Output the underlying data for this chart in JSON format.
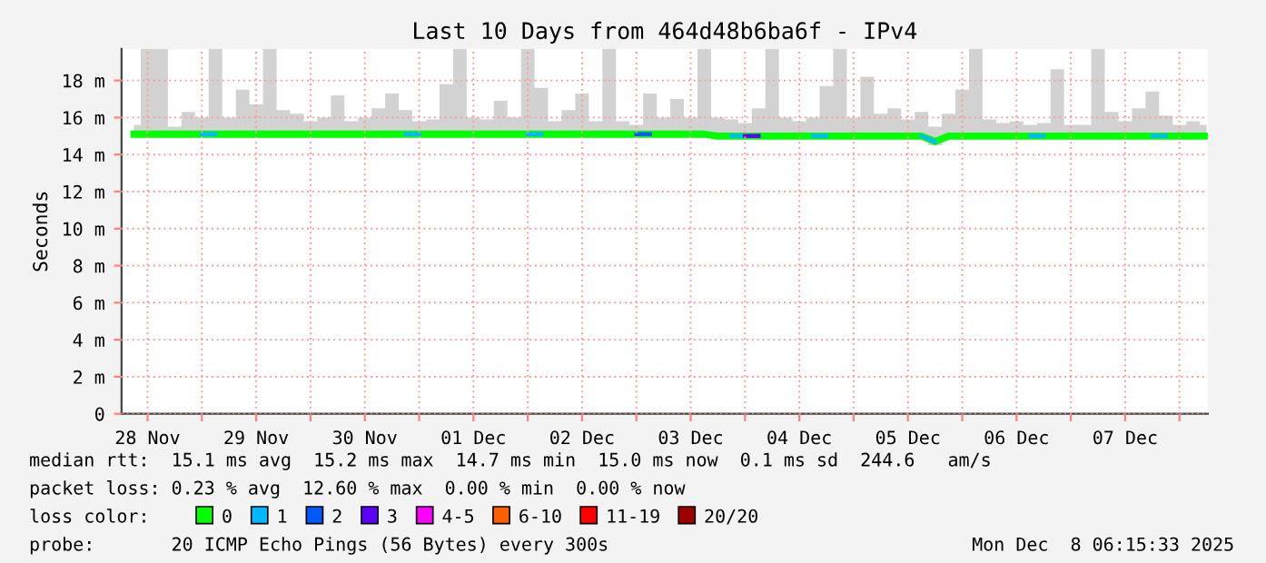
{
  "chart_data": {
    "type": "line",
    "title": "Last 10 Days from 464d48b6ba6f - IPv4",
    "ylabel": "Seconds",
    "legend_title": "loss color:",
    "legend": "bottom",
    "grid": true,
    "x": [
      "2025-11-28T09:00",
      "2025-11-28T12:00",
      "2025-11-28T15:00",
      "2025-11-28T18:00",
      "2025-11-28T21:00",
      "2025-11-29T00:00",
      "2025-11-29T03:00",
      "2025-11-29T06:00",
      "2025-11-29T09:00",
      "2025-11-29T12:00",
      "2025-11-29T15:00",
      "2025-11-29T18:00",
      "2025-11-29T21:00",
      "2025-11-30T00:00",
      "2025-11-30T03:00",
      "2025-11-30T06:00",
      "2025-11-30T09:00",
      "2025-11-30T12:00",
      "2025-11-30T15:00",
      "2025-11-30T18:00",
      "2025-11-30T21:00",
      "2025-12-01T00:00",
      "2025-12-01T03:00",
      "2025-12-01T06:00",
      "2025-12-01T09:00",
      "2025-12-01T12:00",
      "2025-12-01T15:00",
      "2025-12-01T18:00",
      "2025-12-01T21:00",
      "2025-12-02T00:00",
      "2025-12-02T03:00",
      "2025-12-02T06:00",
      "2025-12-02T09:00",
      "2025-12-02T12:00",
      "2025-12-02T15:00",
      "2025-12-02T18:00",
      "2025-12-02T21:00",
      "2025-12-03T00:00",
      "2025-12-03T03:00",
      "2025-12-03T06:00",
      "2025-12-03T09:00",
      "2025-12-03T12:00",
      "2025-12-03T15:00",
      "2025-12-03T18:00",
      "2025-12-03T21:00",
      "2025-12-04T00:00",
      "2025-12-04T03:00",
      "2025-12-04T06:00",
      "2025-12-04T09:00",
      "2025-12-04T12:00",
      "2025-12-04T15:00",
      "2025-12-04T18:00",
      "2025-12-04T21:00",
      "2025-12-05T00:00",
      "2025-12-05T03:00",
      "2025-12-05T06:00",
      "2025-12-05T09:00",
      "2025-12-05T12:00",
      "2025-12-05T15:00",
      "2025-12-05T18:00",
      "2025-12-05T21:00",
      "2025-12-06T00:00",
      "2025-12-06T03:00",
      "2025-12-06T06:00",
      "2025-12-06T09:00",
      "2025-12-06T12:00",
      "2025-12-06T15:00",
      "2025-12-06T18:00",
      "2025-12-06T21:00",
      "2025-12-07T00:00",
      "2025-12-07T03:00",
      "2025-12-07T06:00",
      "2025-12-07T09:00",
      "2025-12-07T12:00",
      "2025-12-07T15:00",
      "2025-12-07T18:00",
      "2025-12-07T21:00",
      "2025-12-08T00:00",
      "2025-12-08T03:00",
      "2025-12-08T06:00"
    ],
    "series": [
      {
        "color": "#00ff00",
        "values": [
          15.1,
          15.1,
          15.1,
          15.1,
          15.1,
          15.1,
          15.1,
          15.1,
          15.1,
          15.1,
          15.1,
          15.1,
          15.1,
          15.1,
          15.1,
          15.1,
          15.1,
          15.1,
          15.1,
          15.1,
          15.1,
          15.1,
          15.1,
          15.1,
          15.1,
          15.1,
          15.1,
          15.1,
          15.1,
          15.1,
          15.1,
          15.1,
          15.1,
          15.1,
          15.1,
          15.1,
          15.1,
          15.1,
          15.1,
          15.1,
          15.1,
          15.1,
          15.1,
          15.0,
          15.0,
          15.0,
          15.0,
          15.0,
          15.0,
          15.0,
          15.0,
          15.0,
          15.0,
          15.0,
          15.0,
          15.0,
          15.0,
          15.0,
          15.0,
          14.7,
          15.0,
          15.0,
          15.0,
          15.0,
          15.0,
          15.0,
          15.0,
          15.0,
          15.0,
          15.0,
          15.0,
          15.0,
          15.0,
          15.0,
          15.0,
          15.0,
          15.0,
          15.0,
          15.0,
          15.0
        ],
        "lower": [
          14.9,
          14.9,
          14.9,
          14.9,
          14.9,
          14.9,
          14.9,
          14.9,
          14.9,
          14.9,
          14.9,
          14.9,
          14.9,
          14.9,
          14.9,
          14.9,
          14.9,
          14.9,
          14.9,
          14.9,
          14.9,
          14.9,
          14.9,
          14.9,
          14.9,
          14.9,
          14.9,
          14.9,
          14.9,
          14.9,
          14.9,
          14.9,
          14.9,
          14.9,
          14.9,
          14.9,
          14.9,
          14.9,
          14.9,
          14.9,
          14.9,
          14.9,
          14.9,
          14.8,
          14.8,
          14.8,
          14.8,
          14.8,
          14.8,
          14.8,
          14.8,
          14.8,
          14.8,
          14.8,
          14.8,
          14.8,
          14.8,
          14.8,
          14.8,
          14.5,
          14.8,
          14.8,
          14.8,
          14.8,
          14.8,
          14.8,
          14.8,
          14.8,
          14.8,
          14.8,
          14.8,
          14.8,
          14.8,
          14.8,
          14.8,
          14.8,
          14.8,
          14.8,
          14.8,
          14.8
        ],
        "upper": [
          15.6,
          19.7,
          19.7,
          15.5,
          16.3,
          16.0,
          19.7,
          16.0,
          17.5,
          16.7,
          19.7,
          16.4,
          16.2,
          15.8,
          16.0,
          17.2,
          15.8,
          16.0,
          16.5,
          17.3,
          16.4,
          15.8,
          15.9,
          17.8,
          19.7,
          16.0,
          15.9,
          16.9,
          16.0,
          19.7,
          17.6,
          15.8,
          16.4,
          17.3,
          15.8,
          19.7,
          15.8,
          15.6,
          17.3,
          16.0,
          17.0,
          16.0,
          19.7,
          16.0,
          15.9,
          15.7,
          16.5,
          19.7,
          16.0,
          15.8,
          16.0,
          17.7,
          19.7,
          16.0,
          18.2,
          16.2,
          16.5,
          15.9,
          16.3,
          15.5,
          16.2,
          17.5,
          19.7,
          15.9,
          15.7,
          15.8,
          15.6,
          15.7,
          18.6,
          15.6,
          15.6,
          19.7,
          16.3,
          15.8,
          16.5,
          17.4,
          16.1,
          15.6,
          15.8,
          15.6
        ]
      },
      {
        "name": "0",
        "color": "#00ff00",
        "values": [
          null,
          null,
          null,
          null,
          null,
          null,
          null,
          null,
          null,
          null,
          null,
          null,
          null,
          null,
          null,
          null,
          null,
          null,
          null,
          null,
          null,
          null,
          null,
          null,
          null,
          null,
          null,
          null,
          null,
          null,
          null,
          null,
          null,
          null,
          null,
          null,
          null,
          null,
          null,
          null,
          null,
          null,
          null,
          null,
          null,
          null,
          null,
          null,
          null,
          null,
          null,
          null,
          null,
          null,
          null,
          null,
          null,
          null,
          null,
          null,
          null,
          null,
          null,
          null,
          null,
          null,
          null,
          null,
          null,
          null,
          null,
          null,
          null,
          null,
          null,
          null,
          null,
          null,
          null,
          null
        ]
      },
      {
        "name": "1",
        "color": "#00b8ff",
        "values": [
          null,
          null,
          null,
          null,
          null,
          15.1,
          15.1,
          null,
          null,
          null,
          null,
          null,
          null,
          null,
          null,
          null,
          null,
          null,
          null,
          null,
          15.1,
          15.1,
          null,
          null,
          null,
          null,
          null,
          null,
          null,
          15.1,
          15.1,
          null,
          null,
          null,
          null,
          null,
          null,
          null,
          null,
          null,
          null,
          null,
          null,
          null,
          15.0,
          15.0,
          null,
          null,
          null,
          null,
          15.0,
          15.0,
          null,
          null,
          null,
          null,
          null,
          null,
          15.0,
          14.7,
          null,
          null,
          null,
          null,
          null,
          null,
          15.0,
          15.0,
          null,
          null,
          null,
          null,
          null,
          null,
          null,
          15.0,
          15.0,
          null,
          null,
          null
        ]
      },
      {
        "name": "2",
        "color": "#0059ff",
        "values": [
          null,
          null,
          null,
          null,
          null,
          null,
          null,
          null,
          null,
          null,
          null,
          null,
          null,
          null,
          null,
          null,
          null,
          null,
          null,
          null,
          null,
          null,
          null,
          null,
          null,
          null,
          null,
          null,
          null,
          null,
          null,
          null,
          null,
          null,
          null,
          null,
          null,
          15.1,
          15.1,
          null,
          null,
          null,
          null,
          null,
          null,
          null,
          null,
          null,
          null,
          null,
          null,
          null,
          null,
          null,
          null,
          null,
          null,
          null,
          null,
          null,
          null,
          null,
          null,
          null,
          null,
          null,
          null,
          null,
          null,
          null,
          null,
          null,
          null,
          null,
          null,
          null,
          null,
          null,
          null,
          null
        ]
      },
      {
        "name": "3",
        "color": "#5e00ff",
        "values": [
          null,
          null,
          null,
          null,
          null,
          null,
          null,
          null,
          null,
          null,
          null,
          null,
          null,
          null,
          null,
          null,
          null,
          null,
          null,
          null,
          null,
          null,
          null,
          null,
          null,
          null,
          null,
          null,
          null,
          null,
          null,
          null,
          null,
          null,
          null,
          null,
          null,
          null,
          null,
          null,
          null,
          null,
          null,
          null,
          null,
          15.0,
          15.0,
          null,
          null,
          null,
          null,
          null,
          null,
          null,
          null,
          null,
          null,
          null,
          null,
          null,
          null,
          null,
          null,
          null,
          null,
          null,
          null,
          null,
          null,
          null,
          null,
          null,
          null,
          null,
          null,
          null,
          null,
          null,
          null,
          null
        ]
      },
      {
        "name": "4-5",
        "color": "#ff00ff",
        "values": [
          null,
          null,
          null,
          null,
          null,
          null,
          null,
          null,
          null,
          null,
          null,
          null,
          null,
          null,
          null,
          null,
          null,
          null,
          null,
          null,
          null,
          null,
          null,
          null,
          null,
          null,
          null,
          null,
          null,
          null,
          null,
          null,
          null,
          null,
          null,
          null,
          null,
          null,
          null,
          null,
          null,
          null,
          null,
          null,
          null,
          null,
          null,
          null,
          null,
          null,
          null,
          null,
          null,
          null,
          null,
          null,
          null,
          null,
          null,
          null,
          null,
          null,
          null,
          null,
          null,
          null,
          null,
          null,
          null,
          null,
          null,
          null,
          null,
          null,
          null,
          null,
          null,
          null,
          null,
          null
        ]
      },
      {
        "name": "6-10",
        "color": "#ff5e00",
        "values": [
          null,
          null,
          null,
          null,
          null,
          null,
          null,
          null,
          null,
          null,
          null,
          null,
          null,
          null,
          null,
          null,
          null,
          null,
          null,
          null,
          null,
          null,
          null,
          null,
          null,
          null,
          null,
          null,
          null,
          null,
          null,
          null,
          null,
          null,
          null,
          null,
          null,
          null,
          null,
          null,
          null,
          null,
          null,
          null,
          null,
          null,
          null,
          null,
          null,
          null,
          null,
          null,
          null,
          null,
          null,
          null,
          null,
          null,
          null,
          null,
          null,
          null,
          null,
          null,
          null,
          null,
          null,
          null,
          null,
          null,
          null,
          null,
          null,
          null,
          null,
          null,
          null,
          null,
          null,
          null
        ]
      },
      {
        "name": "11-19",
        "color": "#ff0000",
        "values": [
          null,
          null,
          null,
          null,
          null,
          null,
          null,
          null,
          null,
          null,
          null,
          null,
          null,
          null,
          null,
          null,
          null,
          null,
          null,
          null,
          null,
          null,
          null,
          null,
          null,
          null,
          null,
          null,
          null,
          null,
          null,
          null,
          null,
          null,
          null,
          null,
          null,
          null,
          null,
          null,
          null,
          null,
          null,
          null,
          null,
          null,
          null,
          null,
          null,
          null,
          null,
          null,
          null,
          null,
          null,
          null,
          null,
          null,
          null,
          null,
          null,
          null,
          null,
          null,
          null,
          null,
          null,
          null,
          null,
          null,
          null,
          null,
          null,
          null,
          null,
          null,
          null,
          null,
          null,
          null
        ]
      },
      {
        "name": "20/20",
        "color": "#a10000",
        "values": [
          null,
          null,
          null,
          null,
          null,
          null,
          null,
          null,
          null,
          null,
          null,
          null,
          null,
          null,
          null,
          null,
          null,
          null,
          null,
          null,
          null,
          null,
          null,
          null,
          null,
          null,
          null,
          null,
          null,
          null,
          null,
          null,
          null,
          null,
          null,
          null,
          null,
          null,
          null,
          null,
          null,
          null,
          null,
          null,
          null,
          null,
          null,
          null,
          null,
          null,
          null,
          null,
          null,
          null,
          null,
          null,
          null,
          null,
          null,
          null,
          null,
          null,
          null,
          null,
          null,
          null,
          null,
          null,
          null,
          null,
          null,
          null,
          null,
          null,
          null,
          null,
          null,
          null,
          null,
          null
        ]
      }
    ],
    "xlim": [
      "2025-11-28T06:15",
      "2025-12-08T06:15"
    ],
    "xticks": [
      {
        "value": "2025-11-28T12:00",
        "label": "28 Nov"
      },
      {
        "value": "2025-11-29T00:00",
        "label": null
      },
      {
        "value": "2025-11-29T12:00",
        "label": "29 Nov"
      },
      {
        "value": "2025-11-30T00:00",
        "label": null
      },
      {
        "value": "2025-11-30T12:00",
        "label": "30 Nov"
      },
      {
        "value": "2025-12-01T00:00",
        "label": null
      },
      {
        "value": "2025-12-01T12:00",
        "label": "01 Dec"
      },
      {
        "value": "2025-12-02T00:00",
        "label": null
      },
      {
        "value": "2025-12-02T12:00",
        "label": "02 Dec"
      },
      {
        "value": "2025-12-03T00:00",
        "label": null
      },
      {
        "value": "2025-12-03T12:00",
        "label": "03 Dec"
      },
      {
        "value": "2025-12-04T00:00",
        "label": null
      },
      {
        "value": "2025-12-04T12:00",
        "label": "04 Dec"
      },
      {
        "value": "2025-12-05T00:00",
        "label": null
      },
      {
        "value": "2025-12-05T12:00",
        "label": "05 Dec"
      },
      {
        "value": "2025-12-06T00:00",
        "label": null
      },
      {
        "value": "2025-12-06T12:00",
        "label": "06 Dec"
      },
      {
        "value": "2025-12-07T00:00",
        "label": null
      },
      {
        "value": "2025-12-07T12:00",
        "label": "07 Dec"
      },
      {
        "value": "2025-12-08T00:00",
        "label": null
      }
    ],
    "ylim": [
      0,
      19.7
    ],
    "yticks": [
      0,
      {
        "value": 2,
        "label": "2 m"
      },
      {
        "value": 4,
        "label": "4 m"
      },
      {
        "value": 6,
        "label": "6 m"
      },
      {
        "value": 8,
        "label": "8 m"
      },
      {
        "value": 10,
        "label": "10 m"
      },
      {
        "value": 12,
        "label": "12 m"
      },
      {
        "value": 14,
        "label": "14 m"
      },
      {
        "value": 16,
        "label": "16 m"
      },
      {
        "value": 18,
        "label": "18 m"
      }
    ],
    "annotations": [
      "median rtt:  15.1 ms avg  15.2 ms max  14.7 ms min  15.0 ms now  0.1 ms sd  244.6   am/s",
      "packet loss: 0.23 % avg  12.60 % max  0.00 % min  0.00 % now",
      "probe:       20 ICMP Echo Pings (56 Bytes) every 300s",
      "Mon Dec  8 06:15:33 2025"
    ]
  }
}
